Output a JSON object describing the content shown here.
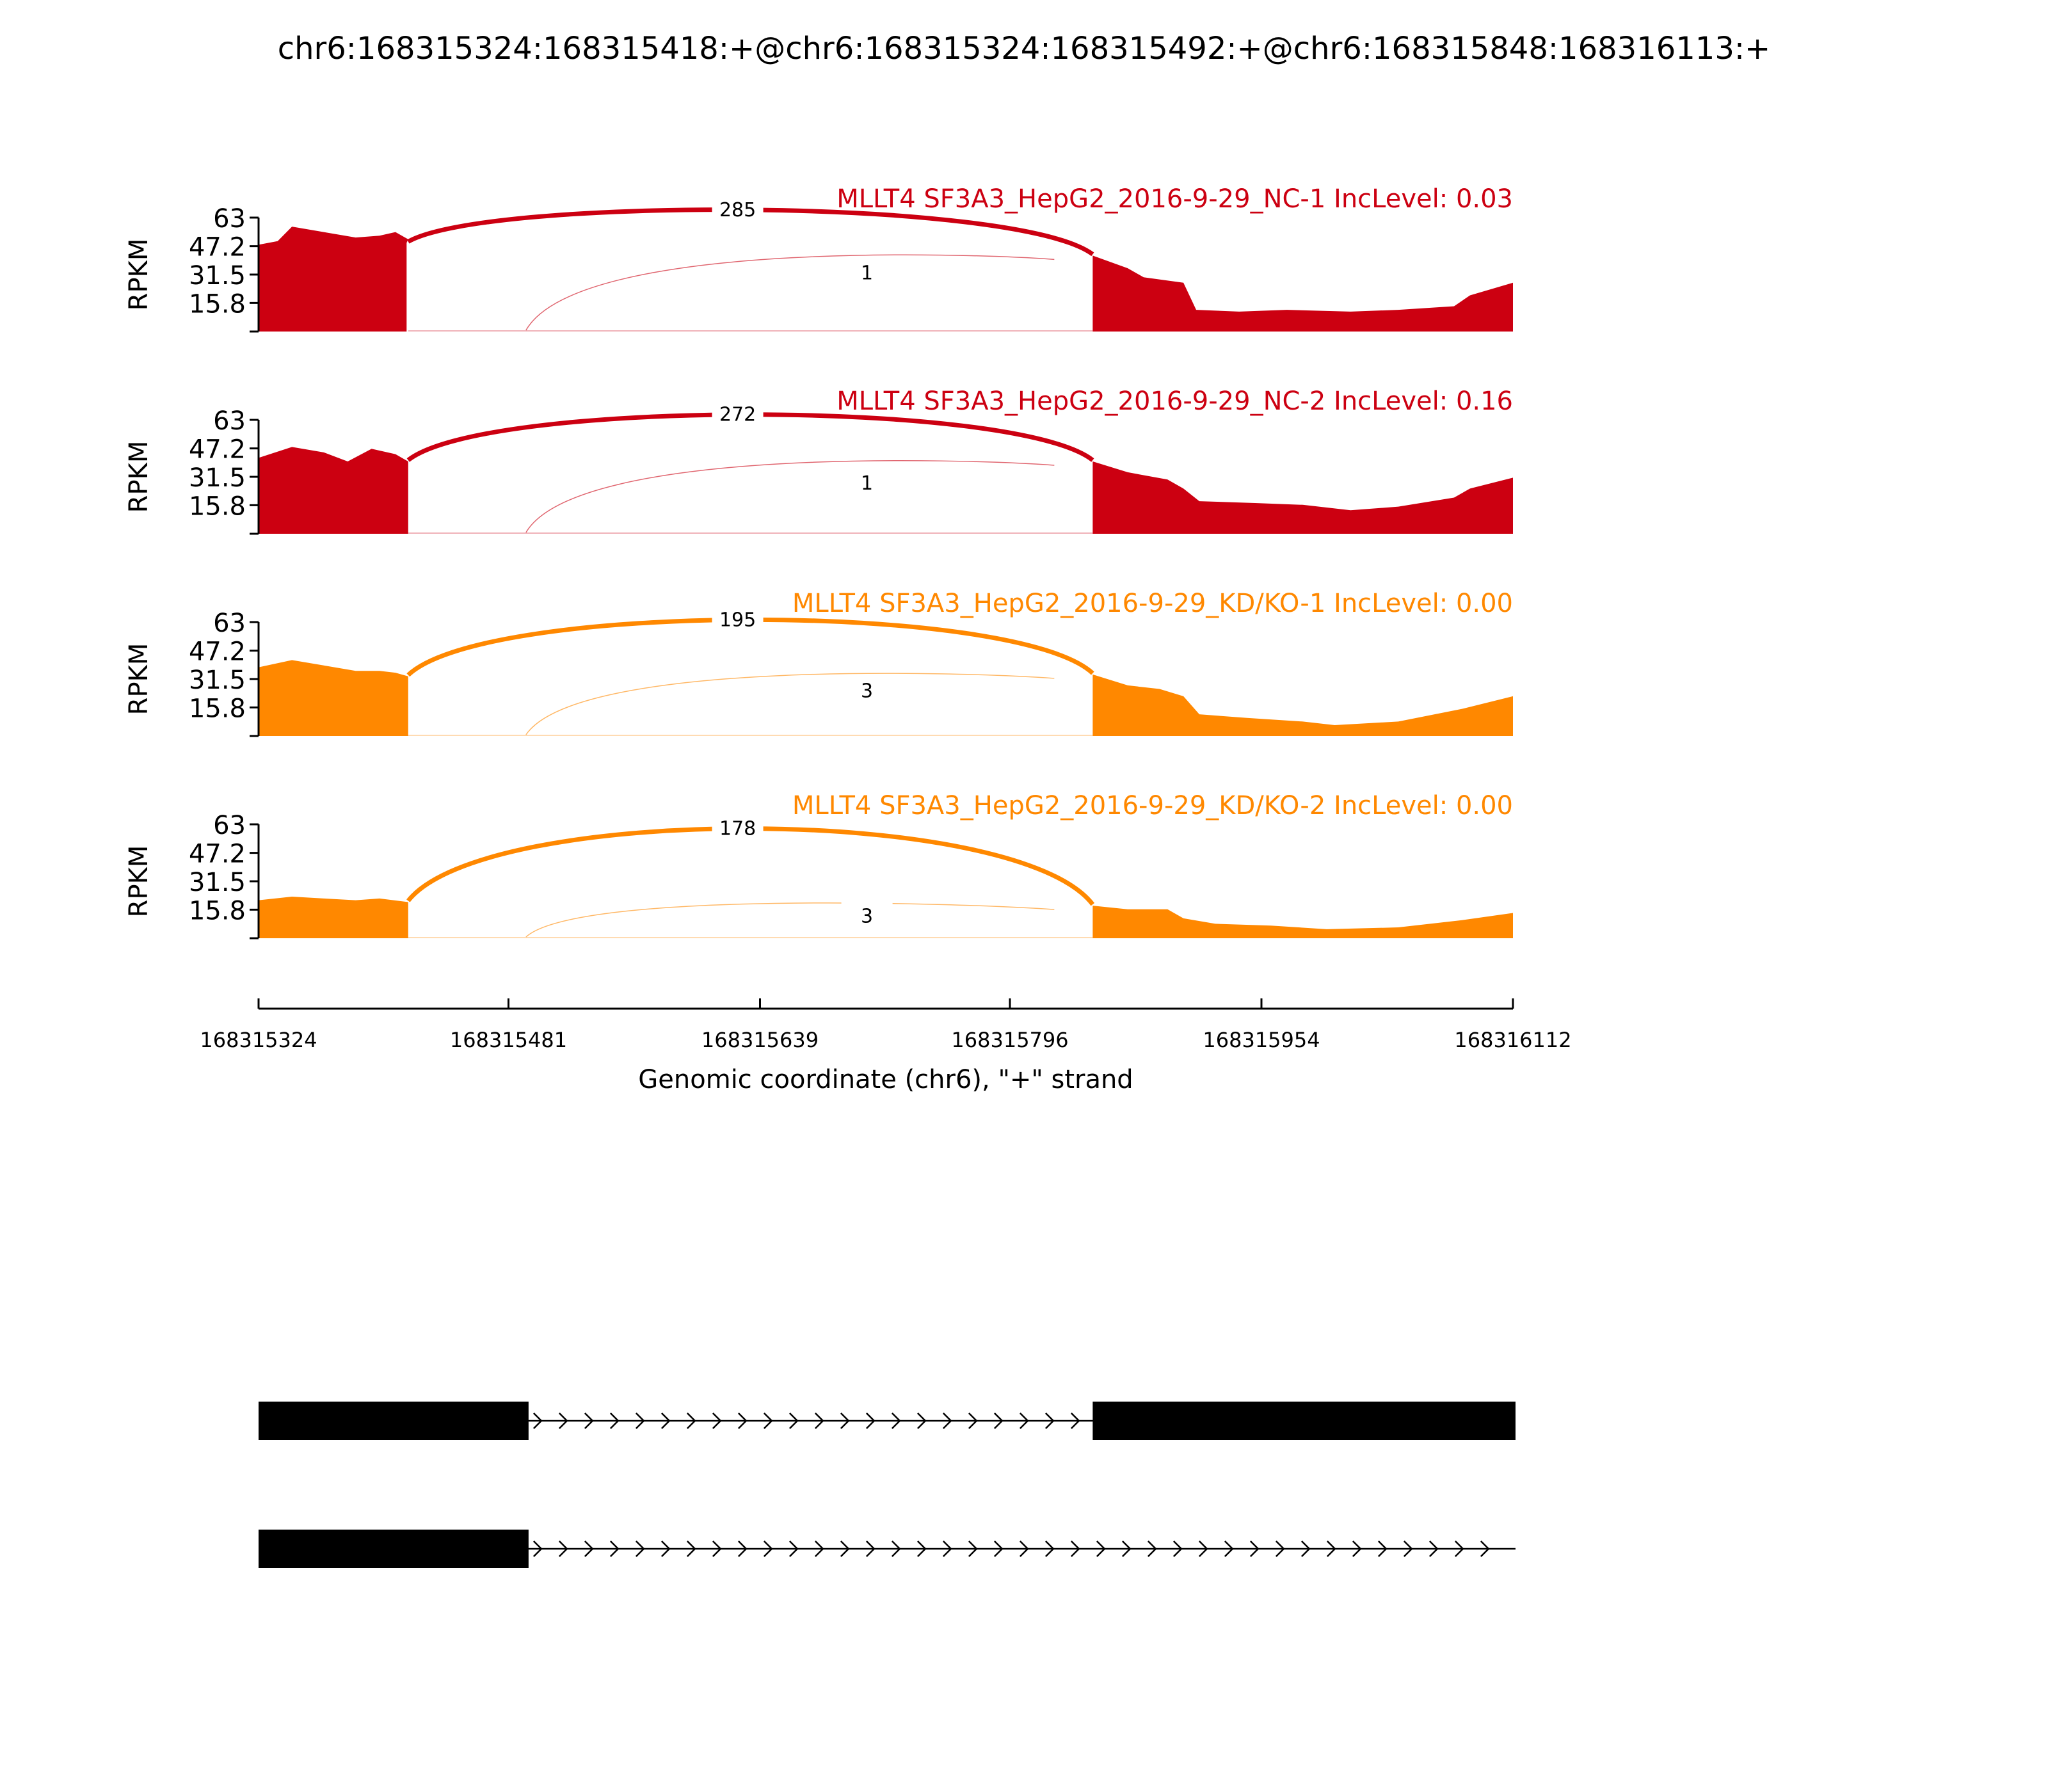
{
  "chart_data": {
    "type": "area",
    "title": "chr6:168315324:168315418:+@chr6:168315324:168315492:+@chr6:168315848:168316113:+",
    "xlabel": "Genomic coordinate (chr6), \"+\" strand",
    "ylabel": "RPKM",
    "xlim": [
      168315324,
      168316112
    ],
    "x_ticks": [
      168315324,
      168315481,
      168315639,
      168315796,
      168315954,
      168316112
    ],
    "x_tick_labels": [
      "168315324",
      "168315481",
      "168315639",
      "168315796",
      "168315954",
      "168316112"
    ],
    "ylim": [
      0,
      63
    ],
    "y_ticks": [
      15.8,
      31.5,
      47.2,
      63
    ],
    "y_tick_labels": [
      "15.8",
      "31.5",
      "47.2",
      "63"
    ],
    "grid": false,
    "legend": "none",
    "series": [
      {
        "name": "MLLT4 SF3A3_HepG2_2016-9-29_NC-1 IncLevel: 0.03",
        "color": "#cc0011",
        "coverage": [
          [
            168315324,
            48
          ],
          [
            168315336,
            50
          ],
          [
            168315345,
            58
          ],
          [
            168315365,
            55
          ],
          [
            168315385,
            52
          ],
          [
            168315400,
            53
          ],
          [
            168315410,
            55
          ],
          [
            168315418,
            51
          ],
          [
            168315417,
            49
          ]
        ],
        "junctions": [
          {
            "start": 168315418,
            "end": 168315848,
            "count": "285"
          },
          {
            "start": 168315492,
            "end": 168315848,
            "count": "1"
          }
        ]
      },
      {
        "name": "MLLT4 SF3A3_HepG2_2016-9-29_NC-2 IncLevel: 0.16",
        "color": "#cc0011",
        "coverage": [
          [
            168315324,
            42
          ],
          [
            168315345,
            48
          ],
          [
            168315365,
            45
          ],
          [
            168315380,
            40
          ],
          [
            168315395,
            47
          ],
          [
            168315410,
            44
          ],
          [
            168315418,
            40
          ]
        ],
        "junctions": [
          {
            "start": 168315418,
            "end": 168315848,
            "count": "272"
          },
          {
            "start": 168315492,
            "end": 168315848,
            "count": "1"
          }
        ]
      },
      {
        "name": "MLLT4 SF3A3_HepG2_2016-9-29_KD/KO-1 IncLevel: 0.00",
        "color": "#ff8800",
        "coverage": [
          [
            168315324,
            38
          ],
          [
            168315345,
            42
          ],
          [
            168315365,
            39
          ],
          [
            168315385,
            36
          ],
          [
            168315400,
            36
          ],
          [
            168315410,
            35
          ],
          [
            168315418,
            33
          ]
        ],
        "junctions": [
          {
            "start": 168315418,
            "end": 168315848,
            "count": "195"
          },
          {
            "start": 168315492,
            "end": 168315848,
            "count": "3"
          }
        ]
      },
      {
        "name": "MLLT4 SF3A3_HepG2_2016-9-29_KD/KO-2 IncLevel: 0.00",
        "color": "#ff8800",
        "coverage": [
          [
            168315324,
            21
          ],
          [
            168315345,
            23
          ],
          [
            168315365,
            22
          ],
          [
            168315385,
            21
          ],
          [
            168315400,
            22
          ],
          [
            168315418,
            20
          ]
        ],
        "junctions": [
          {
            "start": 168315418,
            "end": 168315848,
            "count": "178"
          },
          {
            "start": 168315492,
            "end": 168315848,
            "count": "3"
          }
        ]
      }
    ],
    "coverage_tail": [
      [
        [
          168315848,
          42
        ],
        [
          168315870,
          35
        ],
        [
          168315880,
          30
        ],
        [
          168315905,
          27
        ],
        [
          168315913,
          12
        ],
        [
          168315940,
          11
        ],
        [
          168315970,
          12
        ],
        [
          168316010,
          11
        ],
        [
          168316040,
          12
        ],
        [
          168316075,
          14
        ],
        [
          168316085,
          20
        ],
        [
          168316112,
          27
        ]
      ],
      [
        [
          168315848,
          40
        ],
        [
          168315870,
          34
        ],
        [
          168315895,
          30
        ],
        [
          168315905,
          25
        ],
        [
          168315915,
          18
        ],
        [
          168315950,
          17
        ],
        [
          168315980,
          16
        ],
        [
          168316010,
          13
        ],
        [
          168316040,
          15
        ],
        [
          168316075,
          20
        ],
        [
          168316085,
          25
        ],
        [
          168316112,
          31
        ]
      ],
      [
        [
          168315848,
          34
        ],
        [
          168315870,
          28
        ],
        [
          168315890,
          26
        ],
        [
          168315905,
          22
        ],
        [
          168315915,
          12
        ],
        [
          168315945,
          10
        ],
        [
          168315980,
          8
        ],
        [
          168316000,
          6
        ],
        [
          168316040,
          8
        ],
        [
          168316080,
          15
        ],
        [
          168316112,
          22
        ]
      ],
      [
        [
          168315848,
          18
        ],
        [
          168315870,
          16
        ],
        [
          168315895,
          16
        ],
        [
          168315905,
          11
        ],
        [
          168315925,
          8
        ],
        [
          168315960,
          7
        ],
        [
          168315995,
          5
        ],
        [
          168316040,
          6
        ],
        [
          168316080,
          10
        ],
        [
          168316112,
          14
        ]
      ]
    ],
    "isoforms": [
      {
        "exons": [
          [
            168315324,
            168315492
          ],
          [
            168315848,
            168316112
          ]
        ]
      },
      {
        "exons": [
          [
            168315324,
            168315492
          ]
        ]
      }
    ]
  }
}
